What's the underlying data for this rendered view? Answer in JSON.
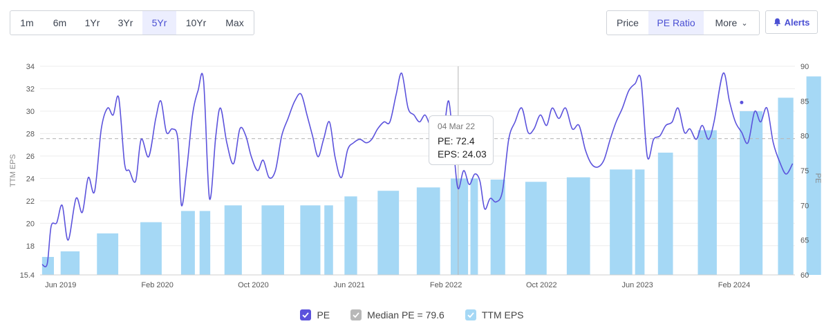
{
  "toolbar": {
    "ranges": [
      "1m",
      "6m",
      "1Yr",
      "3Yr",
      "5Yr",
      "10Yr",
      "Max"
    ],
    "active_range": "5Yr",
    "modes": [
      "Price",
      "PE Ratio",
      "More"
    ],
    "active_mode": "PE Ratio",
    "alerts_label": "Alerts"
  },
  "tooltip": {
    "date": "04 Mar 22",
    "pe": "PE: 72.4",
    "eps": "EPS: 24.03"
  },
  "legend": {
    "pe": "PE",
    "median": "Median PE = 79.6",
    "eps": "TTM EPS"
  },
  "colors": {
    "pe_line": "#5b52dc",
    "eps_bar": "#a5d8f5",
    "median_line": "#b8b8b8",
    "grid": "#ececec",
    "accent": "#4a4fd3"
  },
  "chart_data": {
    "type": "bar+line",
    "left_axis": {
      "label": "TTM EPS",
      "ticks": [
        15.4,
        18,
        20,
        22,
        24,
        26,
        28,
        30,
        32,
        34
      ],
      "range": [
        15.4,
        34
      ]
    },
    "right_axis": {
      "label": "PE",
      "ticks": [
        60,
        65,
        70,
        75,
        80,
        85,
        90
      ],
      "range": [
        60,
        90
      ]
    },
    "x_ticks": [
      "Jun 2019",
      "Feb 2020",
      "Oct 2020",
      "Jun 2021",
      "Feb 2022",
      "Oct 2022",
      "Jun 2023",
      "Feb 2024"
    ],
    "median_pe": 79.6,
    "grid": true,
    "legend_position": "bottom",
    "eps_bars": [
      {
        "date": "2019-04-15",
        "width_days": 30,
        "eps": 17.0
      },
      {
        "date": "2019-06-01",
        "width_days": 48,
        "eps": 17.5
      },
      {
        "date": "2019-09-01",
        "width_days": 54,
        "eps": 19.1
      },
      {
        "date": "2019-12-20",
        "width_days": 54,
        "eps": 20.1
      },
      {
        "date": "2020-04-01",
        "width_days": 35,
        "eps": 21.1
      },
      {
        "date": "2020-05-18",
        "width_days": 27,
        "eps": 21.1
      },
      {
        "date": "2020-07-20",
        "width_days": 44,
        "eps": 21.6
      },
      {
        "date": "2020-10-22",
        "width_days": 57,
        "eps": 21.6
      },
      {
        "date": "2021-01-28",
        "width_days": 51,
        "eps": 21.6
      },
      {
        "date": "2021-03-30",
        "width_days": 22,
        "eps": 21.6
      },
      {
        "date": "2021-05-20",
        "width_days": 32,
        "eps": 22.4
      },
      {
        "date": "2021-08-12",
        "width_days": 54,
        "eps": 22.9
      },
      {
        "date": "2021-11-19",
        "width_days": 59,
        "eps": 23.2
      },
      {
        "date": "2022-02-13",
        "width_days": 44,
        "eps": 24.0
      },
      {
        "date": "2022-04-04",
        "width_days": 19,
        "eps": 24.0
      },
      {
        "date": "2022-05-25",
        "width_days": 37,
        "eps": 23.9
      },
      {
        "date": "2022-08-21",
        "width_days": 54,
        "eps": 23.7
      },
      {
        "date": "2022-12-04",
        "width_days": 59,
        "eps": 24.1
      },
      {
        "date": "2023-03-23",
        "width_days": 57,
        "eps": 24.8
      },
      {
        "date": "2023-05-26",
        "width_days": 24,
        "eps": 24.8
      },
      {
        "date": "2023-07-23",
        "width_days": 38,
        "eps": 26.3
      },
      {
        "date": "2023-11-01",
        "width_days": 48,
        "eps": 28.3
      },
      {
        "date": "2024-02-15",
        "width_days": 58,
        "eps": 30.0
      },
      {
        "date": "2024-05-22",
        "width_days": 39,
        "eps": 31.2
      },
      {
        "date": "2024-08-02",
        "width_days": 37,
        "eps": 33.1
      }
    ],
    "pe_series": [
      [
        "2019-04-15",
        61.5
      ],
      [
        "2019-04-28",
        61.6
      ],
      [
        "2019-05-08",
        67.0
      ],
      [
        "2019-05-22",
        67.5
      ],
      [
        "2019-06-05",
        70.0
      ],
      [
        "2019-06-20",
        65.0
      ],
      [
        "2019-07-10",
        71.0
      ],
      [
        "2019-07-26",
        69.0
      ],
      [
        "2019-08-10",
        74.0
      ],
      [
        "2019-08-26",
        72.0
      ],
      [
        "2019-09-12",
        81.0
      ],
      [
        "2019-09-28",
        84.0
      ],
      [
        "2019-10-12",
        83.0
      ],
      [
        "2019-10-26",
        85.5
      ],
      [
        "2019-11-10",
        76.0
      ],
      [
        "2019-11-22",
        75.0
      ],
      [
        "2019-12-08",
        73.5
      ],
      [
        "2019-12-22",
        79.5
      ],
      [
        "2020-01-10",
        77.0
      ],
      [
        "2020-01-28",
        82.5
      ],
      [
        "2020-02-10",
        85.0
      ],
      [
        "2020-02-24",
        80.5
      ],
      [
        "2020-03-10",
        81.0
      ],
      [
        "2020-03-24",
        79.5
      ],
      [
        "2020-04-02",
        70.0
      ],
      [
        "2020-04-16",
        75.5
      ],
      [
        "2020-04-30",
        83.0
      ],
      [
        "2020-05-14",
        86.5
      ],
      [
        "2020-05-28",
        88.0
      ],
      [
        "2020-06-12",
        71.0
      ],
      [
        "2020-06-28",
        80.0
      ],
      [
        "2020-07-10",
        84.0
      ],
      [
        "2020-07-26",
        79.0
      ],
      [
        "2020-08-12",
        76.0
      ],
      [
        "2020-08-28",
        81.0
      ],
      [
        "2020-09-12",
        80.0
      ],
      [
        "2020-09-26",
        77.0
      ],
      [
        "2020-10-12",
        75.0
      ],
      [
        "2020-10-26",
        76.5
      ],
      [
        "2020-11-10",
        74.0
      ],
      [
        "2020-11-26",
        75.0
      ],
      [
        "2020-12-12",
        80.0
      ],
      [
        "2020-12-28",
        82.5
      ],
      [
        "2021-01-14",
        85.0
      ],
      [
        "2021-01-30",
        86.0
      ],
      [
        "2021-02-14",
        83.0
      ],
      [
        "2021-02-28",
        80.0
      ],
      [
        "2021-03-14",
        77.0
      ],
      [
        "2021-03-28",
        79.5
      ],
      [
        "2021-04-12",
        82.0
      ],
      [
        "2021-04-26",
        77.0
      ],
      [
        "2021-05-12",
        74.0
      ],
      [
        "2021-05-28",
        78.0
      ],
      [
        "2021-06-12",
        79.0
      ],
      [
        "2021-06-28",
        79.5
      ],
      [
        "2021-07-14",
        79.0
      ],
      [
        "2021-07-28",
        79.5
      ],
      [
        "2021-08-12",
        81.0
      ],
      [
        "2021-08-28",
        82.0
      ],
      [
        "2021-09-12",
        82.0
      ],
      [
        "2021-09-28",
        86.0
      ],
      [
        "2021-10-12",
        89.0
      ],
      [
        "2021-10-28",
        84.0
      ],
      [
        "2021-11-12",
        83.0
      ],
      [
        "2021-11-26",
        82.0
      ],
      [
        "2021-12-10",
        83.0
      ],
      [
        "2021-12-24",
        81.5
      ],
      [
        "2022-01-08",
        82.0
      ],
      [
        "2022-01-24",
        80.0
      ],
      [
        "2022-02-08",
        85.0
      ],
      [
        "2022-02-22",
        77.0
      ],
      [
        "2022-03-04",
        72.4
      ],
      [
        "2022-03-18",
        75.0
      ],
      [
        "2022-04-01",
        73.0
      ],
      [
        "2022-04-15",
        74.5
      ],
      [
        "2022-04-28",
        73.5
      ],
      [
        "2022-05-10",
        69.5
      ],
      [
        "2022-05-24",
        71.0
      ],
      [
        "2022-06-08",
        70.5
      ],
      [
        "2022-06-24",
        72.0
      ],
      [
        "2022-07-10",
        79.5
      ],
      [
        "2022-07-26",
        82.0
      ],
      [
        "2022-08-12",
        84.0
      ],
      [
        "2022-08-28",
        80.5
      ],
      [
        "2022-09-12",
        81.0
      ],
      [
        "2022-09-28",
        83.0
      ],
      [
        "2022-10-14",
        81.5
      ],
      [
        "2022-10-28",
        84.0
      ],
      [
        "2022-11-14",
        82.5
      ],
      [
        "2022-12-01",
        84.0
      ],
      [
        "2022-12-18",
        81.0
      ],
      [
        "2023-01-04",
        81.5
      ],
      [
        "2023-01-20",
        78.0
      ],
      [
        "2023-02-04",
        76.0
      ],
      [
        "2023-02-20",
        75.5
      ],
      [
        "2023-03-08",
        76.5
      ],
      [
        "2023-03-24",
        79.5
      ],
      [
        "2023-04-08",
        82.0
      ],
      [
        "2023-04-24",
        84.0
      ],
      [
        "2023-05-10",
        86.5
      ],
      [
        "2023-05-26",
        87.5
      ],
      [
        "2023-06-10",
        88.0
      ],
      [
        "2023-06-26",
        77.0
      ],
      [
        "2023-07-12",
        79.5
      ],
      [
        "2023-07-28",
        80.0
      ],
      [
        "2023-08-12",
        81.5
      ],
      [
        "2023-08-28",
        82.0
      ],
      [
        "2023-09-12",
        84.0
      ],
      [
        "2023-09-28",
        80.5
      ],
      [
        "2023-10-12",
        81.0
      ],
      [
        "2023-10-28",
        79.5
      ],
      [
        "2023-11-12",
        81.5
      ],
      [
        "2023-11-28",
        79.5
      ],
      [
        "2023-12-12",
        82.0
      ],
      [
        "2024-01-04",
        89.0
      ],
      [
        "2024-01-20",
        85.0
      ],
      [
        "2024-02-04",
        82.0
      ],
      [
        "2024-02-20",
        80.5
      ],
      [
        "2024-03-07",
        79.0
      ],
      [
        "2024-03-24",
        83.5
      ],
      [
        "2024-04-08",
        82.0
      ],
      [
        "2024-04-24",
        84.0
      ],
      [
        "2024-05-10",
        79.0
      ],
      [
        "2024-05-28",
        76.0
      ],
      [
        "2024-06-12",
        74.5
      ],
      [
        "2024-06-28",
        76.0
      ]
    ]
  }
}
